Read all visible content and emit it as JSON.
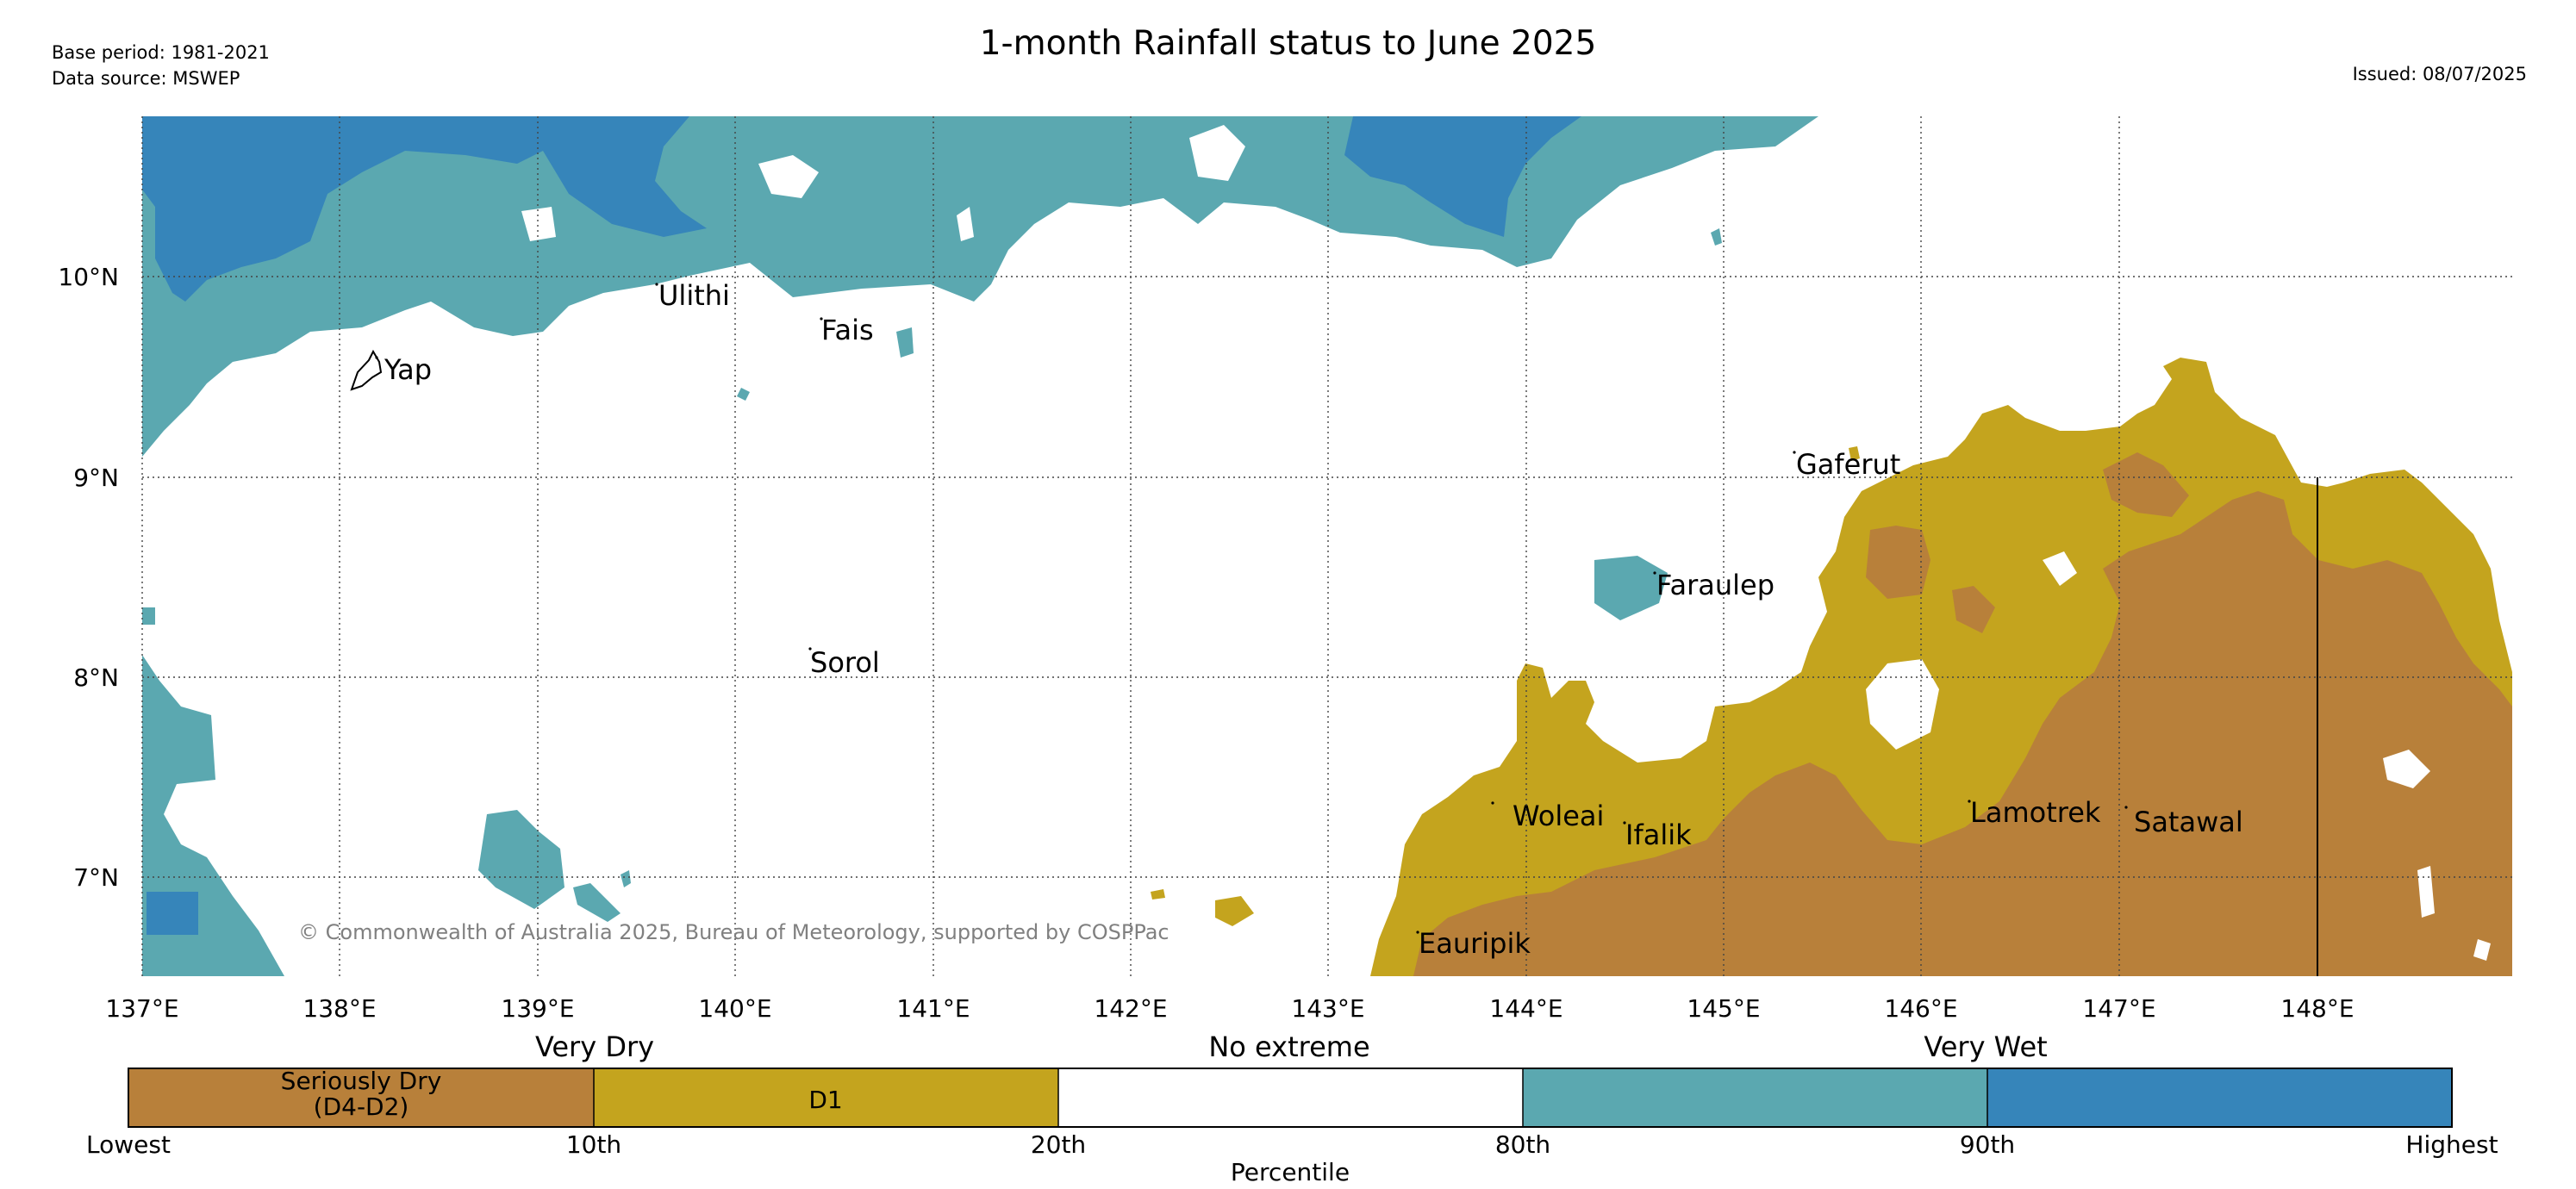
{
  "header": {
    "title": "1-month Rainfall status to June 2025",
    "base_period": "Base period: 1981-2021",
    "data_source": "Data source: MSWEP",
    "issued": "Issued: 08/07/2025"
  },
  "map": {
    "lat_labels": [
      "10°N",
      "9°N",
      "8°N",
      "7°N"
    ],
    "lon_labels": [
      "137°E",
      "138°E",
      "139°E",
      "140°E",
      "141°E",
      "142°E",
      "143°E",
      "144°E",
      "145°E",
      "146°E",
      "147°E",
      "148°E"
    ],
    "places": [
      {
        "name": "Yap"
      },
      {
        "name": "Ulithi"
      },
      {
        "name": "Fais"
      },
      {
        "name": "Sorol"
      },
      {
        "name": "Gaferut"
      },
      {
        "name": "Faraulep"
      },
      {
        "name": "Woleai"
      },
      {
        "name": "Ifalik"
      },
      {
        "name": "Lamotrek"
      },
      {
        "name": "Satawal"
      },
      {
        "name": "Eauripik"
      }
    ],
    "copyright": "© Commonwealth of Australia 2025, Bureau of Meteorology, supported by COSPPac"
  },
  "legend": {
    "headings": [
      "Very Dry",
      "No extreme",
      "Very Wet"
    ],
    "categories": [
      {
        "label_line1": "Seriously Dry",
        "label_line2": "(D4-D2)",
        "color": "#b8803a"
      },
      {
        "label_line1": "D1",
        "label_line2": "",
        "color": "#c4a41e"
      },
      {
        "label_line1": "",
        "label_line2": "",
        "color": "#ffffff"
      },
      {
        "label_line1": "",
        "label_line2": "",
        "color": "#5ba8b0"
      },
      {
        "label_line1": "",
        "label_line2": "",
        "color": "#3685ba"
      }
    ],
    "ticks": [
      "Lowest",
      "10th",
      "20th",
      "80th",
      "90th",
      "Highest"
    ],
    "xlabel": "Percentile"
  },
  "colors": {
    "seriously_dry": "#b8803a",
    "d1": "#c4a41e",
    "wet_90": "#5ba8b0",
    "wet_highest": "#3685ba"
  }
}
